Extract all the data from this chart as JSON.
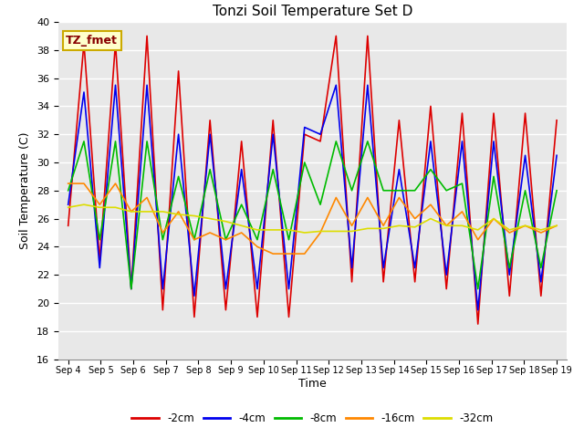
{
  "title": "Tonzi Soil Temperature Set D",
  "xlabel": "Time",
  "ylabel": "Soil Temperature (C)",
  "ylim": [
    16,
    40
  ],
  "yticks": [
    16,
    18,
    20,
    22,
    24,
    26,
    28,
    30,
    32,
    34,
    36,
    38,
    40
  ],
  "annotation_text": "TZ_fmet",
  "annotation_box_facecolor": "#ffffcc",
  "annotation_box_edgecolor": "#ccaa00",
  "x_labels": [
    "Sep 4",
    "Sep 5",
    "Sep 6",
    "Sep 7",
    "Sep 8",
    "Sep 9",
    "Sep 10",
    "Sep 11",
    "Sep 12",
    "Sep 13",
    "Sep 14",
    "Sep 15",
    "Sep 16",
    "Sep 17",
    "Sep 18",
    "Sep 19"
  ],
  "series": {
    "-2cm": {
      "color": "#dd0000",
      "data": [
        25.5,
        38.5,
        23.0,
        38.5,
        21.0,
        39.0,
        19.5,
        36.5,
        19.0,
        33.0,
        19.5,
        31.5,
        19.0,
        33.0,
        19.0,
        32.0,
        31.5,
        39.0,
        21.5,
        39.0,
        21.5,
        33.0,
        21.5,
        34.0,
        21.0,
        33.5,
        18.5,
        33.5,
        20.5,
        33.5,
        20.5,
        33.0
      ]
    },
    "-4cm": {
      "color": "#0000ee",
      "data": [
        27.0,
        35.0,
        22.5,
        35.5,
        21.0,
        35.5,
        21.0,
        32.0,
        20.5,
        32.0,
        21.0,
        29.5,
        21.0,
        32.0,
        21.0,
        32.5,
        32.0,
        35.5,
        22.5,
        35.5,
        22.5,
        29.5,
        22.5,
        31.5,
        22.0,
        31.5,
        19.5,
        31.5,
        22.0,
        30.5,
        21.5,
        30.5
      ]
    },
    "-8cm": {
      "color": "#00bb00",
      "data": [
        28.0,
        31.5,
        24.5,
        31.5,
        21.0,
        31.5,
        24.5,
        29.0,
        24.5,
        29.5,
        24.5,
        27.0,
        24.5,
        29.5,
        24.5,
        30.0,
        27.0,
        31.5,
        28.0,
        31.5,
        28.0,
        28.0,
        28.0,
        29.5,
        28.0,
        28.5,
        21.0,
        29.0,
        22.5,
        28.0,
        22.5,
        28.0
      ]
    },
    "-16cm": {
      "color": "#ff8800",
      "data": [
        28.5,
        28.5,
        27.0,
        28.5,
        26.5,
        27.5,
        25.0,
        26.5,
        24.5,
        25.0,
        24.5,
        25.0,
        24.0,
        23.5,
        23.5,
        23.5,
        25.0,
        27.5,
        25.5,
        27.5,
        25.5,
        27.5,
        26.0,
        27.0,
        25.5,
        26.5,
        24.5,
        26.0,
        25.0,
        25.5,
        25.0,
        25.5
      ]
    },
    "-32cm": {
      "color": "#dddd00",
      "data": [
        26.8,
        27.0,
        26.8,
        26.8,
        26.5,
        26.5,
        26.5,
        26.3,
        26.2,
        26.0,
        25.8,
        25.5,
        25.2,
        25.2,
        25.2,
        25.0,
        25.1,
        25.1,
        25.1,
        25.3,
        25.3,
        25.5,
        25.4,
        26.0,
        25.5,
        25.5,
        25.2,
        26.0,
        25.2,
        25.5,
        25.2,
        25.5
      ]
    }
  }
}
